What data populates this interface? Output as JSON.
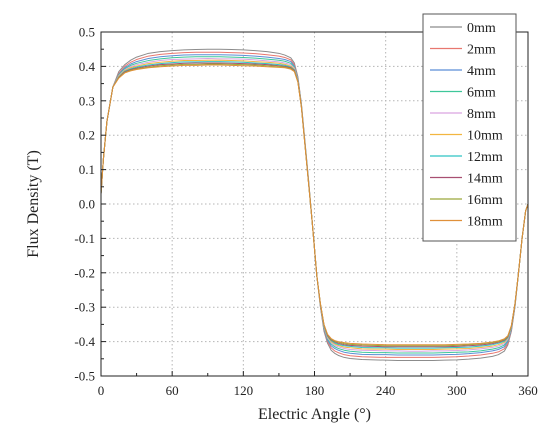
{
  "chart_data": {
    "type": "line",
    "xlabel": "Electric Angle (°)",
    "ylabel": "Flux Density (T)",
    "xlim": [
      0,
      360
    ],
    "ylim": [
      -0.5,
      0.5
    ],
    "xticks": [
      "0",
      "60",
      "120",
      "180",
      "240",
      "300",
      "360"
    ],
    "yticks": [
      "-0.5",
      "-0.4",
      "-0.3",
      "-0.2",
      "-0.1",
      "0.0",
      "0.1",
      "0.2",
      "0.3",
      "0.4",
      "0.5"
    ],
    "grid": true,
    "legend_position": "top-right",
    "x": [
      0,
      2,
      5,
      10,
      15,
      20,
      25,
      30,
      40,
      50,
      60,
      70,
      80,
      90,
      100,
      110,
      120,
      130,
      140,
      150,
      155,
      160,
      163,
      166,
      169,
      172,
      175,
      178,
      180,
      182,
      185,
      188,
      191,
      194,
      197,
      200,
      205,
      210,
      220,
      230,
      240,
      250,
      260,
      270,
      280,
      290,
      300,
      310,
      320,
      330,
      335,
      340,
      343,
      346,
      349,
      352,
      355,
      358,
      360
    ],
    "series": [
      {
        "name": "0mm",
        "color": "#8c8c8c",
        "values": [
          0.03,
          0.13,
          0.24,
          0.34,
          0.385,
          0.405,
          0.418,
          0.427,
          0.438,
          0.443,
          0.446,
          0.448,
          0.449,
          0.45,
          0.45,
          0.449,
          0.448,
          0.446,
          0.443,
          0.438,
          0.433,
          0.425,
          0.41,
          0.37,
          0.29,
          0.18,
          0.07,
          -0.05,
          -0.13,
          -0.21,
          -0.3,
          -0.37,
          -0.405,
          -0.425,
          -0.434,
          -0.44,
          -0.446,
          -0.449,
          -0.452,
          -0.453,
          -0.454,
          -0.455,
          -0.455,
          -0.455,
          -0.455,
          -0.454,
          -0.453,
          -0.451,
          -0.448,
          -0.443,
          -0.438,
          -0.428,
          -0.41,
          -0.37,
          -0.3,
          -0.2,
          -0.1,
          -0.02,
          0.0
        ]
      },
      {
        "name": "2mm",
        "color": "#e8776f",
        "values": [
          0.03,
          0.13,
          0.24,
          0.34,
          0.38,
          0.4,
          0.412,
          0.42,
          0.43,
          0.435,
          0.438,
          0.44,
          0.441,
          0.441,
          0.441,
          0.44,
          0.439,
          0.437,
          0.434,
          0.43,
          0.426,
          0.419,
          0.405,
          0.367,
          0.288,
          0.178,
          0.068,
          -0.05,
          -0.13,
          -0.21,
          -0.298,
          -0.366,
          -0.4,
          -0.418,
          -0.427,
          -0.432,
          -0.438,
          -0.441,
          -0.444,
          -0.445,
          -0.446,
          -0.446,
          -0.446,
          -0.446,
          -0.446,
          -0.445,
          -0.444,
          -0.442,
          -0.439,
          -0.434,
          -0.43,
          -0.421,
          -0.405,
          -0.367,
          -0.298,
          -0.2,
          -0.1,
          -0.02,
          0.0
        ]
      },
      {
        "name": "4mm",
        "color": "#5b8ed6",
        "values": [
          0.03,
          0.13,
          0.24,
          0.34,
          0.377,
          0.396,
          0.407,
          0.414,
          0.423,
          0.428,
          0.431,
          0.433,
          0.434,
          0.434,
          0.434,
          0.433,
          0.432,
          0.43,
          0.427,
          0.423,
          0.42,
          0.414,
          0.401,
          0.364,
          0.286,
          0.176,
          0.066,
          -0.05,
          -0.13,
          -0.21,
          -0.296,
          -0.363,
          -0.396,
          -0.412,
          -0.42,
          -0.425,
          -0.431,
          -0.434,
          -0.437,
          -0.438,
          -0.438,
          -0.439,
          -0.439,
          -0.439,
          -0.439,
          -0.438,
          -0.437,
          -0.435,
          -0.432,
          -0.427,
          -0.423,
          -0.415,
          -0.4,
          -0.364,
          -0.296,
          -0.2,
          -0.1,
          -0.02,
          0.0
        ]
      },
      {
        "name": "6mm",
        "color": "#3ec79a",
        "values": [
          0.03,
          0.13,
          0.24,
          0.34,
          0.375,
          0.393,
          0.403,
          0.409,
          0.417,
          0.422,
          0.425,
          0.427,
          0.428,
          0.428,
          0.428,
          0.427,
          0.426,
          0.424,
          0.421,
          0.418,
          0.415,
          0.409,
          0.398,
          0.362,
          0.285,
          0.175,
          0.065,
          -0.05,
          -0.13,
          -0.21,
          -0.295,
          -0.36,
          -0.392,
          -0.407,
          -0.415,
          -0.42,
          -0.425,
          -0.428,
          -0.431,
          -0.432,
          -0.432,
          -0.433,
          -0.433,
          -0.433,
          -0.433,
          -0.432,
          -0.431,
          -0.43,
          -0.427,
          -0.422,
          -0.418,
          -0.41,
          -0.396,
          -0.361,
          -0.295,
          -0.2,
          -0.1,
          -0.02,
          0.0
        ]
      },
      {
        "name": "8mm",
        "color": "#d9a3e0",
        "values": [
          0.03,
          0.13,
          0.24,
          0.34,
          0.373,
          0.39,
          0.399,
          0.405,
          0.412,
          0.417,
          0.42,
          0.421,
          0.422,
          0.423,
          0.422,
          0.422,
          0.421,
          0.419,
          0.416,
          0.413,
          0.41,
          0.405,
          0.395,
          0.36,
          0.284,
          0.174,
          0.064,
          -0.05,
          -0.13,
          -0.21,
          -0.294,
          -0.358,
          -0.389,
          -0.403,
          -0.411,
          -0.415,
          -0.42,
          -0.423,
          -0.425,
          -0.426,
          -0.427,
          -0.427,
          -0.428,
          -0.428,
          -0.427,
          -0.427,
          -0.426,
          -0.424,
          -0.421,
          -0.417,
          -0.413,
          -0.406,
          -0.393,
          -0.359,
          -0.294,
          -0.2,
          -0.1,
          -0.02,
          0.0
        ]
      },
      {
        "name": "10mm",
        "color": "#f2b640",
        "values": [
          0.03,
          0.13,
          0.24,
          0.34,
          0.371,
          0.388,
          0.396,
          0.401,
          0.408,
          0.412,
          0.415,
          0.417,
          0.417,
          0.418,
          0.418,
          0.417,
          0.416,
          0.414,
          0.412,
          0.409,
          0.406,
          0.401,
          0.392,
          0.358,
          0.283,
          0.173,
          0.063,
          -0.05,
          -0.13,
          -0.21,
          -0.293,
          -0.356,
          -0.386,
          -0.4,
          -0.407,
          -0.411,
          -0.416,
          -0.418,
          -0.421,
          -0.422,
          -0.422,
          -0.423,
          -0.423,
          -0.423,
          -0.423,
          -0.422,
          -0.421,
          -0.42,
          -0.417,
          -0.413,
          -0.409,
          -0.402,
          -0.39,
          -0.357,
          -0.293,
          -0.2,
          -0.1,
          -0.02,
          0.0
        ]
      },
      {
        "name": "12mm",
        "color": "#2ec4c4",
        "values": [
          0.03,
          0.13,
          0.24,
          0.34,
          0.369,
          0.386,
          0.393,
          0.398,
          0.404,
          0.408,
          0.411,
          0.413,
          0.413,
          0.414,
          0.414,
          0.413,
          0.412,
          0.41,
          0.408,
          0.405,
          0.403,
          0.398,
          0.39,
          0.357,
          0.282,
          0.172,
          0.062,
          -0.05,
          -0.13,
          -0.21,
          -0.292,
          -0.354,
          -0.384,
          -0.397,
          -0.404,
          -0.408,
          -0.412,
          -0.414,
          -0.417,
          -0.418,
          -0.418,
          -0.419,
          -0.419,
          -0.419,
          -0.419,
          -0.418,
          -0.417,
          -0.416,
          -0.413,
          -0.409,
          -0.405,
          -0.399,
          -0.388,
          -0.356,
          -0.292,
          -0.2,
          -0.1,
          -0.02,
          0.0
        ]
      },
      {
        "name": "14mm",
        "color": "#a84f72",
        "values": [
          0.03,
          0.13,
          0.24,
          0.34,
          0.368,
          0.384,
          0.391,
          0.395,
          0.401,
          0.405,
          0.407,
          0.409,
          0.41,
          0.41,
          0.41,
          0.409,
          0.408,
          0.407,
          0.405,
          0.402,
          0.4,
          0.396,
          0.388,
          0.356,
          0.281,
          0.171,
          0.061,
          -0.05,
          -0.13,
          -0.21,
          -0.291,
          -0.352,
          -0.382,
          -0.395,
          -0.401,
          -0.405,
          -0.409,
          -0.411,
          -0.413,
          -0.414,
          -0.415,
          -0.415,
          -0.415,
          -0.415,
          -0.415,
          -0.415,
          -0.414,
          -0.412,
          -0.41,
          -0.406,
          -0.402,
          -0.396,
          -0.386,
          -0.355,
          -0.291,
          -0.2,
          -0.1,
          -0.02,
          0.0
        ]
      },
      {
        "name": "16mm",
        "color": "#9aa83a",
        "values": [
          0.03,
          0.13,
          0.24,
          0.34,
          0.367,
          0.382,
          0.389,
          0.393,
          0.398,
          0.402,
          0.404,
          0.406,
          0.406,
          0.407,
          0.407,
          0.406,
          0.405,
          0.404,
          0.402,
          0.4,
          0.398,
          0.394,
          0.386,
          0.355,
          0.28,
          0.17,
          0.06,
          -0.05,
          -0.13,
          -0.21,
          -0.29,
          -0.351,
          -0.38,
          -0.393,
          -0.399,
          -0.402,
          -0.406,
          -0.408,
          -0.41,
          -0.411,
          -0.412,
          -0.412,
          -0.412,
          -0.412,
          -0.412,
          -0.412,
          -0.411,
          -0.409,
          -0.407,
          -0.403,
          -0.4,
          -0.394,
          -0.384,
          -0.354,
          -0.29,
          -0.2,
          -0.1,
          -0.02,
          0.0
        ]
      },
      {
        "name": "18mm",
        "color": "#e0903a",
        "values": [
          0.03,
          0.13,
          0.24,
          0.34,
          0.366,
          0.381,
          0.387,
          0.391,
          0.396,
          0.399,
          0.401,
          0.403,
          0.403,
          0.404,
          0.404,
          0.403,
          0.402,
          0.401,
          0.399,
          0.397,
          0.396,
          0.392,
          0.385,
          0.354,
          0.28,
          0.17,
          0.06,
          -0.05,
          -0.13,
          -0.21,
          -0.29,
          -0.35,
          -0.379,
          -0.391,
          -0.397,
          -0.4,
          -0.403,
          -0.405,
          -0.407,
          -0.408,
          -0.409,
          -0.409,
          -0.409,
          -0.409,
          -0.409,
          -0.409,
          -0.408,
          -0.407,
          -0.405,
          -0.401,
          -0.398,
          -0.392,
          -0.383,
          -0.353,
          -0.29,
          -0.2,
          -0.1,
          -0.02,
          0.0
        ]
      }
    ]
  }
}
